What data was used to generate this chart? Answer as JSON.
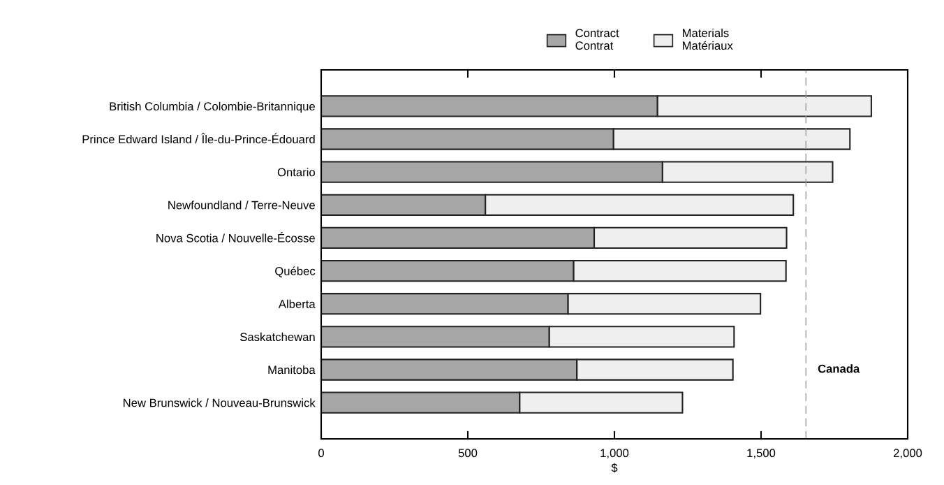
{
  "chart_data": {
    "type": "bar",
    "orientation": "horizontal",
    "stacked": true,
    "xlabel": "$",
    "categories": [
      "British Columbia / Colombie-Britannique",
      "Prince Edward Island / Île-du-Prince-Édouard",
      "Ontario",
      "Newfoundland / Terre-Neuve",
      "Nova Scotia / Nouvelle-Écosse",
      "Québec",
      "Alberta",
      "Saskatchewan",
      "Manitoba",
      "New Brunswick / Nouveau-Brunswick"
    ],
    "series": [
      {
        "name": "Contract\nContrat",
        "color": "#a6a6a6",
        "values": [
          1147,
          997,
          1164,
          560,
          931,
          861,
          842,
          778,
          872,
          677
        ]
      },
      {
        "name": "Materials\nMatériaux",
        "color": "#efefef",
        "values": [
          729,
          806,
          580,
          1050,
          656,
          724,
          656,
          630,
          532,
          555
        ]
      }
    ],
    "xlim": [
      0,
      2000
    ],
    "xticks": [
      0,
      {
        "value": 500,
        "label": "500"
      },
      {
        "value": 1000,
        "label": "1,000"
      },
      {
        "value": 1500,
        "label": "1,500"
      },
      {
        "value": 2000,
        "label": "2,000"
      }
    ],
    "ref_lines": [
      {
        "axis": "x",
        "value": 1653,
        "label": "Canada",
        "color": "#999999",
        "line_style": "dashed"
      }
    ],
    "legend": "top right",
    "grid": false
  }
}
